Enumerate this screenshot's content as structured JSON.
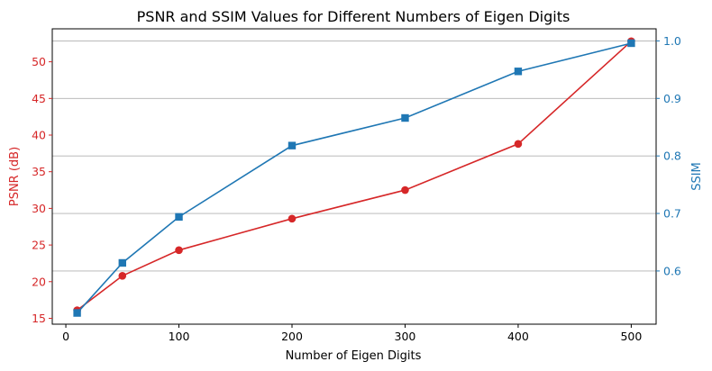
{
  "chart_data": {
    "type": "line",
    "title": "PSNR and SSIM Values for Different Numbers of Eigen Digits",
    "xlabel": "Number of Eigen Digits",
    "x": [
      10,
      50,
      100,
      200,
      300,
      400,
      500
    ],
    "xlim": [
      -12,
      522
    ],
    "x_ticks": [
      0,
      100,
      200,
      300,
      400,
      500
    ],
    "x_tick_labels": [
      "0",
      "100",
      "200",
      "300",
      "400",
      "500"
    ],
    "left_axis": {
      "label": "PSNR (dB)",
      "color": "#d62728",
      "ylim": [
        14.2,
        54.5
      ],
      "ticks": [
        15,
        20,
        25,
        30,
        35,
        40,
        45,
        50
      ],
      "tick_labels": [
        "15",
        "20",
        "25",
        "30",
        "35",
        "40",
        "45",
        "50"
      ]
    },
    "right_axis": {
      "label": "SSIM",
      "color": "#1f77b4",
      "ylim": [
        0.5075,
        1.021
      ],
      "ticks": [
        0.6,
        0.7,
        0.8,
        0.9,
        1.0
      ],
      "tick_labels": [
        "0.6",
        "0.7",
        "0.8",
        "0.9",
        "1.0"
      ]
    },
    "grid": "horizontal lines at right-axis ticks",
    "series": [
      {
        "axis": "left",
        "marker": "circle",
        "color": "#d62728",
        "values": [
          16.1,
          20.8,
          24.3,
          28.6,
          32.5,
          38.8,
          52.8
        ]
      },
      {
        "axis": "right",
        "marker": "square",
        "color": "#1f77b4",
        "values": [
          0.527,
          0.614,
          0.694,
          0.818,
          0.866,
          0.947,
          0.996
        ]
      }
    ]
  }
}
